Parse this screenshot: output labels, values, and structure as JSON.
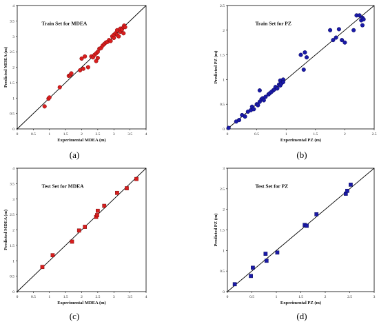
{
  "chart_data": [
    {
      "type": "scatter",
      "caption": "(a)",
      "title": "Train Set for MDEA",
      "xlabel": "Experimental MDEA (m)",
      "ylabel": "Predicted MDEA (m)",
      "xlim": [
        0,
        4
      ],
      "ylim": [
        0,
        4
      ],
      "xticks": [
        "0",
        "0.5",
        "1",
        "1.5",
        "2",
        "2.5",
        "3",
        "3.5",
        "4"
      ],
      "yticks": [
        "0",
        "0.5",
        "1",
        "1.5",
        "2",
        "2.5",
        "3",
        "3.5",
        "4"
      ],
      "marker": "circle",
      "color": "#d91e1e",
      "stroke": "#7a0b0b",
      "diagonal": true,
      "x": [
        0.85,
        0.97,
        1.0,
        1.32,
        1.6,
        1.65,
        1.68,
        1.95,
        2.0,
        2.05,
        2.1,
        2.2,
        2.3,
        2.35,
        2.4,
        2.45,
        2.45,
        2.5,
        2.5,
        2.55,
        2.6,
        2.65,
        2.7,
        2.75,
        2.8,
        2.85,
        2.9,
        2.95,
        3.0,
        3.0,
        3.05,
        3.1,
        3.1,
        3.15,
        3.2,
        3.2,
        3.25,
        3.3,
        3.3,
        3.32,
        3.35
      ],
      "y": [
        0.73,
        0.98,
        1.02,
        1.35,
        1.72,
        1.75,
        1.8,
        1.9,
        2.28,
        1.95,
        2.35,
        2.0,
        2.35,
        2.32,
        2.4,
        2.2,
        2.45,
        2.3,
        2.5,
        2.6,
        2.62,
        2.7,
        2.75,
        2.8,
        2.82,
        2.88,
        2.85,
        3.0,
        3.05,
        2.95,
        3.1,
        3.05,
        3.2,
        3.0,
        3.15,
        3.25,
        3.22,
        3.3,
        3.1,
        3.35,
        3.3
      ]
    },
    {
      "type": "scatter",
      "caption": "(b)",
      "title": "Train Set for PZ",
      "xlabel": "Experimental  PZ (m)",
      "ylabel": "Predicted PZ (m)",
      "xlim": [
        0,
        2.5
      ],
      "ylim": [
        0,
        2.5
      ],
      "xticks": [
        "0",
        "0.5",
        "1",
        "1.5",
        "2",
        "2.5"
      ],
      "yticks": [
        "0",
        "0.5",
        "1",
        "1.5",
        "2",
        "2.5"
      ],
      "marker": "circle",
      "color": "#1a1aa8",
      "stroke": "#0a0a55",
      "diagonal": true,
      "x": [
        0.02,
        0.15,
        0.2,
        0.25,
        0.3,
        0.35,
        0.4,
        0.42,
        0.45,
        0.5,
        0.52,
        0.55,
        0.58,
        0.6,
        0.62,
        0.65,
        0.7,
        0.72,
        0.75,
        0.78,
        0.8,
        0.82,
        0.85,
        0.88,
        0.9,
        0.9,
        0.92,
        0.95,
        0.95,
        0.55,
        1.3,
        1.32,
        1.35,
        1.25,
        1.75,
        1.8,
        1.85,
        1.9,
        1.95,
        2.0,
        2.15,
        2.2,
        2.25,
        2.28,
        2.3,
        2.3,
        2.32
      ],
      "y": [
        0.02,
        0.15,
        0.18,
        0.28,
        0.25,
        0.35,
        0.38,
        0.45,
        0.4,
        0.5,
        0.48,
        0.55,
        0.6,
        0.62,
        0.58,
        0.65,
        0.7,
        0.72,
        0.75,
        0.78,
        0.8,
        0.85,
        0.82,
        0.9,
        0.88,
        0.98,
        0.92,
        1.0,
        0.95,
        0.78,
        1.2,
        1.55,
        1.45,
        1.5,
        2.0,
        1.8,
        1.85,
        2.02,
        1.8,
        1.75,
        2.0,
        2.3,
        2.3,
        2.2,
        2.1,
        2.25,
        2.22
      ]
    },
    {
      "type": "scatter",
      "caption": "(c)",
      "title": "Test Set for MDEA",
      "xlabel": "Experimental MDEA (m)",
      "ylabel": "Predicted MDEA (m)",
      "xlim": [
        0,
        4
      ],
      "ylim": [
        0,
        4
      ],
      "xticks": [
        "0",
        "0.5",
        "1",
        "1.5",
        "2",
        "2.5",
        "3",
        "3.5",
        "4"
      ],
      "yticks": [
        "0",
        "0.5",
        "1",
        "1.5",
        "2",
        "2.5",
        "3",
        "3.5",
        "4"
      ],
      "marker": "square",
      "color": "#d91e1e",
      "stroke": "#7a0b0b",
      "diagonal": true,
      "x": [
        0.78,
        1.1,
        1.7,
        1.92,
        2.1,
        2.45,
        2.48,
        2.5,
        2.7,
        3.1,
        3.4,
        3.7
      ],
      "y": [
        0.8,
        1.18,
        1.62,
        1.98,
        2.1,
        2.42,
        2.48,
        2.62,
        2.78,
        3.2,
        3.35,
        3.65
      ]
    },
    {
      "type": "scatter",
      "caption": "(d)",
      "title": "Test Set for PZ",
      "xlabel": "Experimental  PZ (m)",
      "ylabel": "Predicted PZ (m)",
      "xlim": [
        0,
        3
      ],
      "ylim": [
        0,
        3
      ],
      "xticks": [
        "0",
        "0.5",
        "1",
        "1.5",
        "2",
        "2.5",
        "3"
      ],
      "yticks": [
        "0",
        "0.5",
        "1",
        "1.5",
        "2",
        "2.5",
        "3"
      ],
      "marker": "square",
      "color": "#1a1aa8",
      "stroke": "#0a0a55",
      "diagonal": true,
      "x": [
        0.15,
        0.48,
        0.52,
        0.78,
        0.8,
        1.02,
        1.58,
        1.62,
        1.82,
        2.42,
        2.45,
        2.52
      ],
      "y": [
        0.18,
        0.38,
        0.58,
        0.92,
        0.75,
        0.95,
        1.62,
        1.6,
        1.88,
        2.38,
        2.45,
        2.6
      ]
    }
  ]
}
